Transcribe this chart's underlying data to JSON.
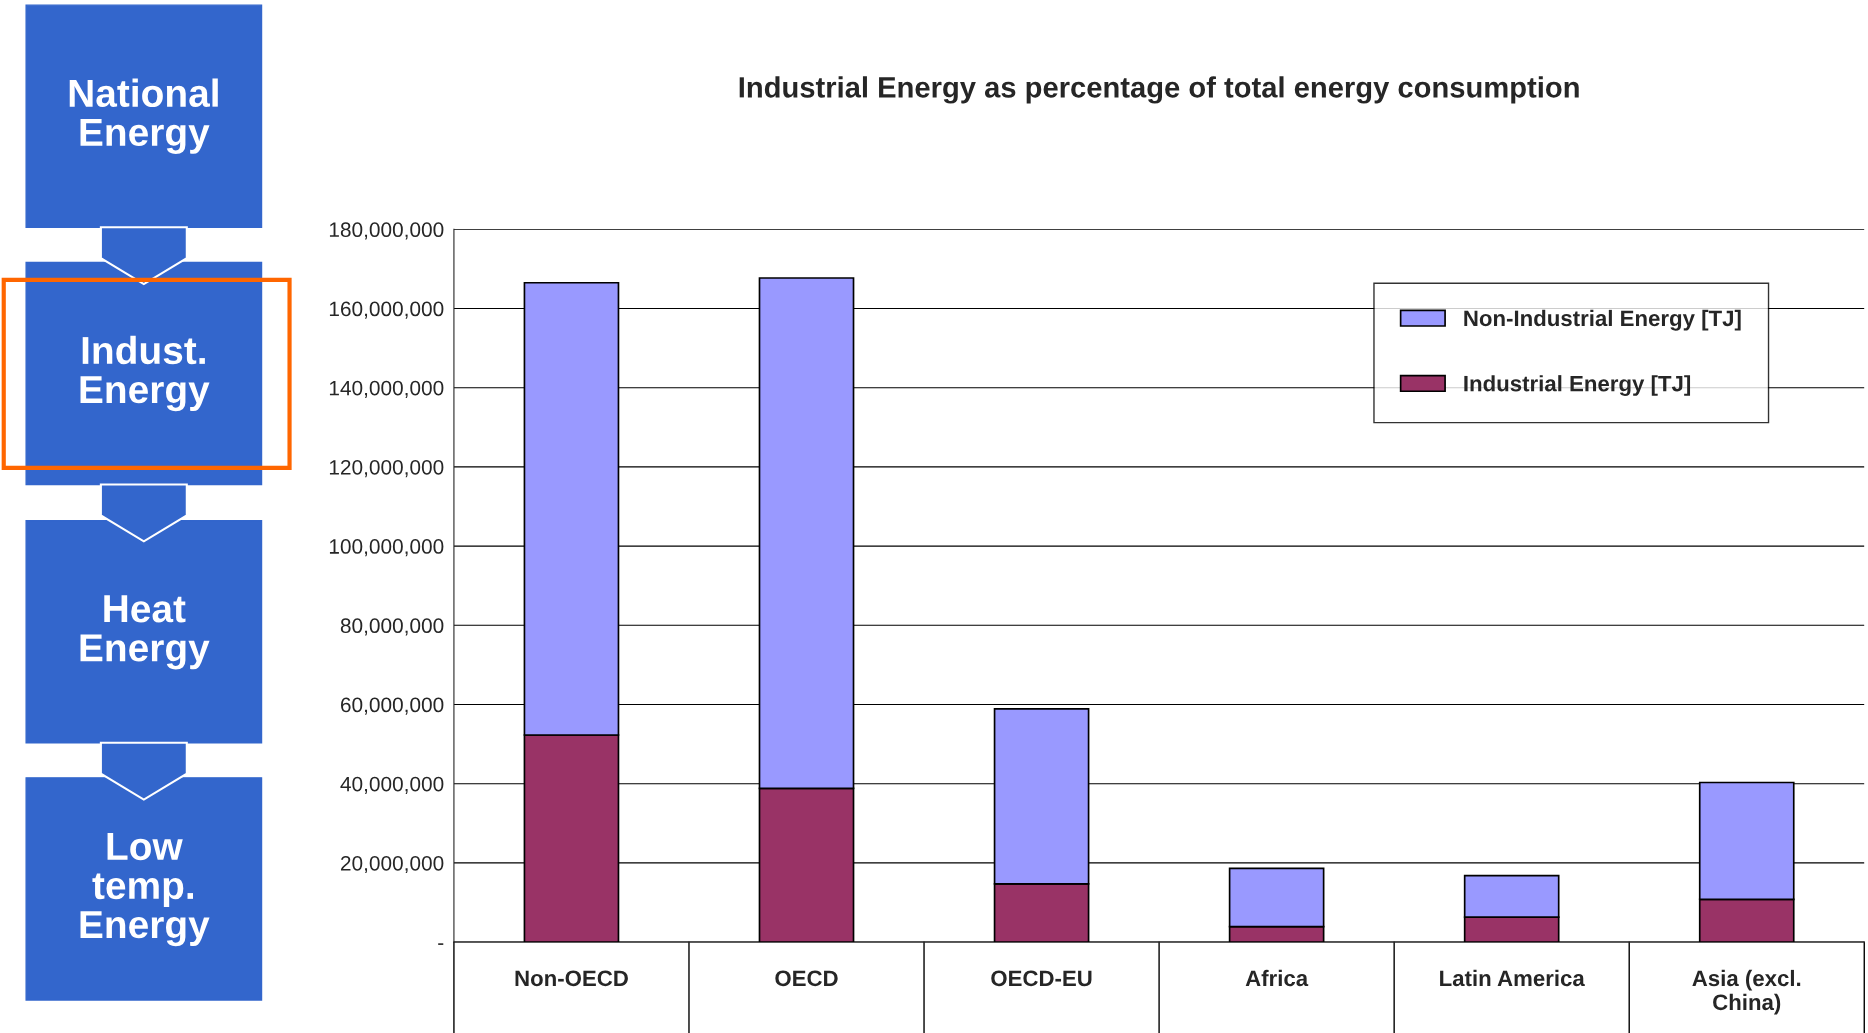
{
  "chart_data": {
    "type": "bar",
    "title": "Industrial Energy as percentage of total energy consumption",
    "categories": [
      "Non-OECD",
      "OECD",
      "OECD-EU",
      "Africa",
      "Latin America",
      "Asia (excl.\nChina)"
    ],
    "stacked": true,
    "series": [
      {
        "name": "Industrial Energy [TJ]",
        "color": "#993366",
        "values": [
          52300000,
          38800000,
          14700000,
          3900000,
          6300000,
          10800000
        ]
      },
      {
        "name": "Non-Industrial Energy [TJ]",
        "color": "#9999ff",
        "values": [
          114200000,
          128900000,
          44200000,
          14700000,
          10500000,
          29500000
        ]
      }
    ],
    "ylim": [
      0,
      180000000
    ],
    "yticks": [
      {
        "value": 0,
        "label": "-"
      },
      {
        "value": 20000000,
        "label": "20,000,000"
      },
      {
        "value": 40000000,
        "label": "40,000,000"
      },
      {
        "value": 60000000,
        "label": "60,000,000"
      },
      {
        "value": 80000000,
        "label": "80,000,000"
      },
      {
        "value": 100000000,
        "label": "100,000,000"
      },
      {
        "value": 120000000,
        "label": "120,000,000"
      },
      {
        "value": 140000000,
        "label": "140,000,000"
      },
      {
        "value": 160000000,
        "label": "160,000,000"
      },
      {
        "value": 180000000,
        "label": "180,000,000"
      }
    ],
    "grid": "y",
    "legend": "top right",
    "annotations": [
      "National Energy",
      "Indust. Energy",
      "Heat Energy",
      "Low temp. Energy"
    ]
  }
}
